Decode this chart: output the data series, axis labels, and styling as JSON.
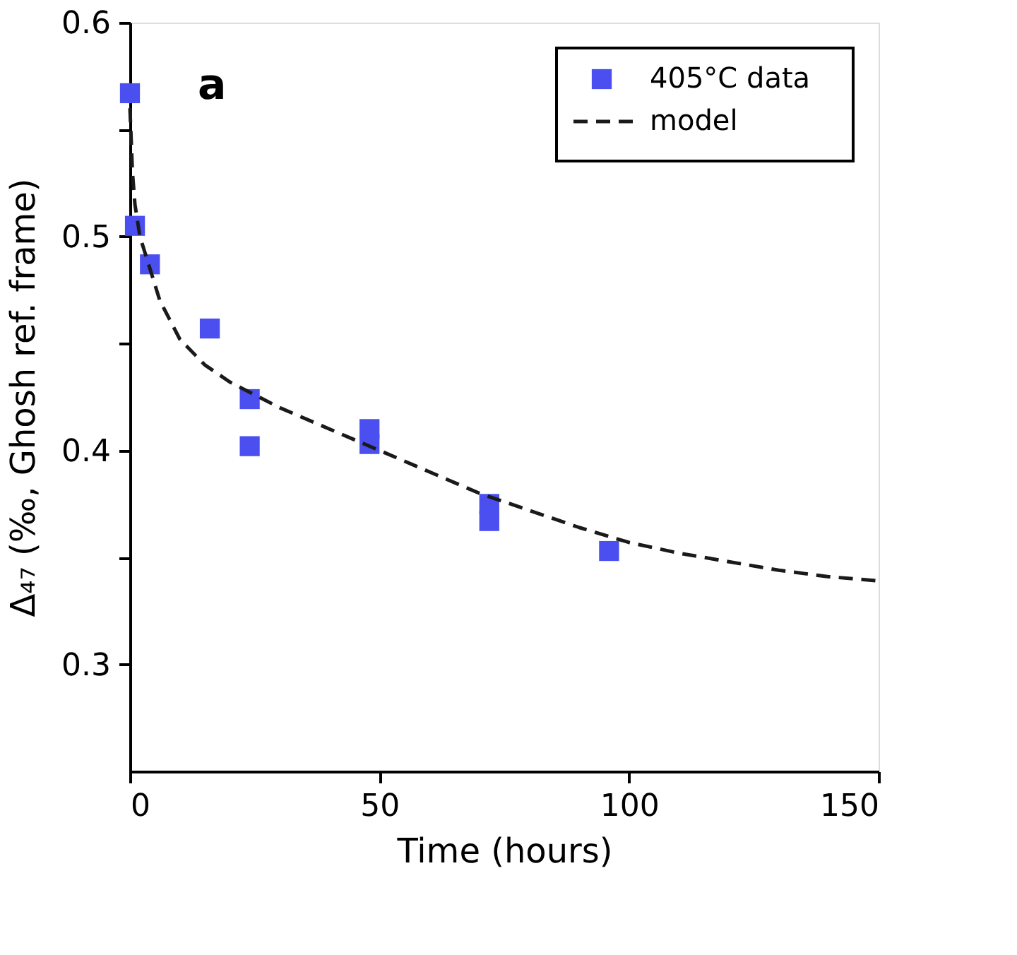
{
  "chart_data": {
    "type": "scatter",
    "xlabel": "Time (hours)",
    "ylabel": "Δ₄₇ (‰, Ghosh ref. frame)",
    "annotations": [
      "a"
    ],
    "xlim": [
      0,
      150
    ],
    "xticks": [
      0,
      50,
      100,
      150
    ],
    "ylim": [
      0.25,
      0.6
    ],
    "yticks": [
      0.3,
      {
        "value": 0.35,
        "label": null
      },
      0.4,
      {
        "value": 0.45,
        "label": null
      },
      0.5,
      {
        "value": 0.55,
        "label": null
      },
      0.6
    ],
    "legend": "top right",
    "grid": false,
    "series": [
      {
        "name": "405°C data",
        "type": "scatter",
        "marker": "square",
        "color": "#4b4ff0",
        "x": [
          0,
          1,
          4,
          16,
          24,
          24,
          48,
          48,
          72,
          72,
          96
        ],
        "values": [
          0.567,
          0.505,
          0.487,
          0.457,
          0.424,
          0.402,
          0.41,
          0.403,
          0.375,
          0.367,
          0.353
        ]
      },
      {
        "name": "model",
        "type": "line",
        "line_style": "dashed",
        "color": "#1a1a1a",
        "x": [
          0,
          0.5,
          1,
          2,
          4,
          6,
          10,
          15,
          20,
          30,
          40,
          50,
          60,
          70,
          80,
          90,
          100,
          110,
          120,
          130,
          140,
          150
        ],
        "values": [
          0.56,
          0.53,
          0.515,
          0.5,
          0.485,
          0.47,
          0.452,
          0.44,
          0.432,
          0.42,
          0.41,
          0.4,
          0.39,
          0.38,
          0.372,
          0.364,
          0.357,
          0.352,
          0.348,
          0.344,
          0.341,
          0.339
        ]
      }
    ]
  }
}
